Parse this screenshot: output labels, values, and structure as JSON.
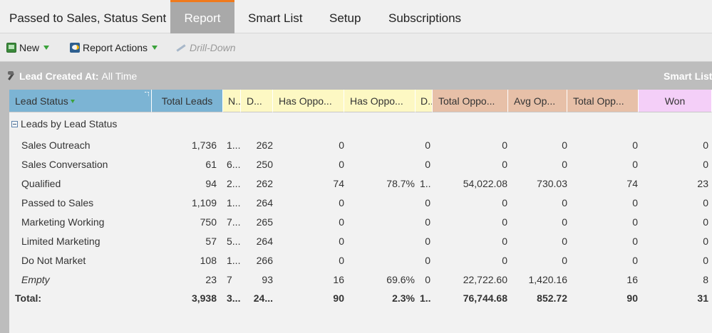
{
  "tabs": [
    {
      "label": "Passed to Sales, Status Sent"
    },
    {
      "label": "Report"
    },
    {
      "label": "Smart List"
    },
    {
      "label": "Setup"
    },
    {
      "label": "Subscriptions"
    }
  ],
  "toolbar": {
    "new_label": "New",
    "actions_label": "Report Actions",
    "drill_label": "Drill-Down"
  },
  "filter": {
    "label": "Lead Created At:",
    "value": "All Time",
    "right_label": "Smart List:"
  },
  "columns": [
    {
      "label": "Lead Status"
    },
    {
      "label": "Total Leads"
    },
    {
      "label": "N..."
    },
    {
      "label": "D..."
    },
    {
      "label": "Has Oppo..."
    },
    {
      "label": "Has Oppo..."
    },
    {
      "label": "D..."
    },
    {
      "label": "Total Oppo..."
    },
    {
      "label": "Avg Op..."
    },
    {
      "label": "Total Opp..."
    },
    {
      "label": "Won"
    }
  ],
  "group_label": "Leads by Lead Status",
  "rows": [
    {
      "label": "Sales Outreach",
      "c": [
        "1,736",
        "1...",
        "262",
        "0",
        "",
        "0",
        "",
        "0",
        "0",
        "0",
        "0"
      ]
    },
    {
      "label": "Sales Conversation",
      "c": [
        "61",
        "6...",
        "250",
        "0",
        "",
        "0",
        "",
        "0",
        "0",
        "0",
        "0"
      ]
    },
    {
      "label": "Qualified",
      "c": [
        "94",
        "2...",
        "262",
        "74",
        "78.7%",
        "1...",
        "",
        "54,022.08",
        "730.03",
        "74",
        "23"
      ]
    },
    {
      "label": "Passed to Sales",
      "c": [
        "1,109",
        "1...",
        "264",
        "0",
        "",
        "0",
        "",
        "0",
        "0",
        "0",
        "0"
      ]
    },
    {
      "label": "Marketing Working",
      "c": [
        "750",
        "7...",
        "265",
        "0",
        "",
        "0",
        "",
        "0",
        "0",
        "0",
        "0"
      ]
    },
    {
      "label": "Limited Marketing",
      "c": [
        "57",
        "5...",
        "264",
        "0",
        "",
        "0",
        "",
        "0",
        "0",
        "0",
        "0"
      ]
    },
    {
      "label": "Do Not Market",
      "c": [
        "108",
        "1...",
        "266",
        "0",
        "",
        "0",
        "",
        "0",
        "0",
        "0",
        "0"
      ]
    },
    {
      "label": "Empty",
      "c": [
        "23",
        "7",
        "93",
        "16",
        "69.6%",
        "0",
        "",
        "22,722.60",
        "1,420.16",
        "16",
        "8"
      ]
    }
  ],
  "total": {
    "label": "Total:",
    "c": [
      "3,938",
      "3...",
      "24...",
      "90",
      "2.3%",
      "1...",
      "",
      "76,744.68",
      "852.72",
      "90",
      "31"
    ]
  }
}
